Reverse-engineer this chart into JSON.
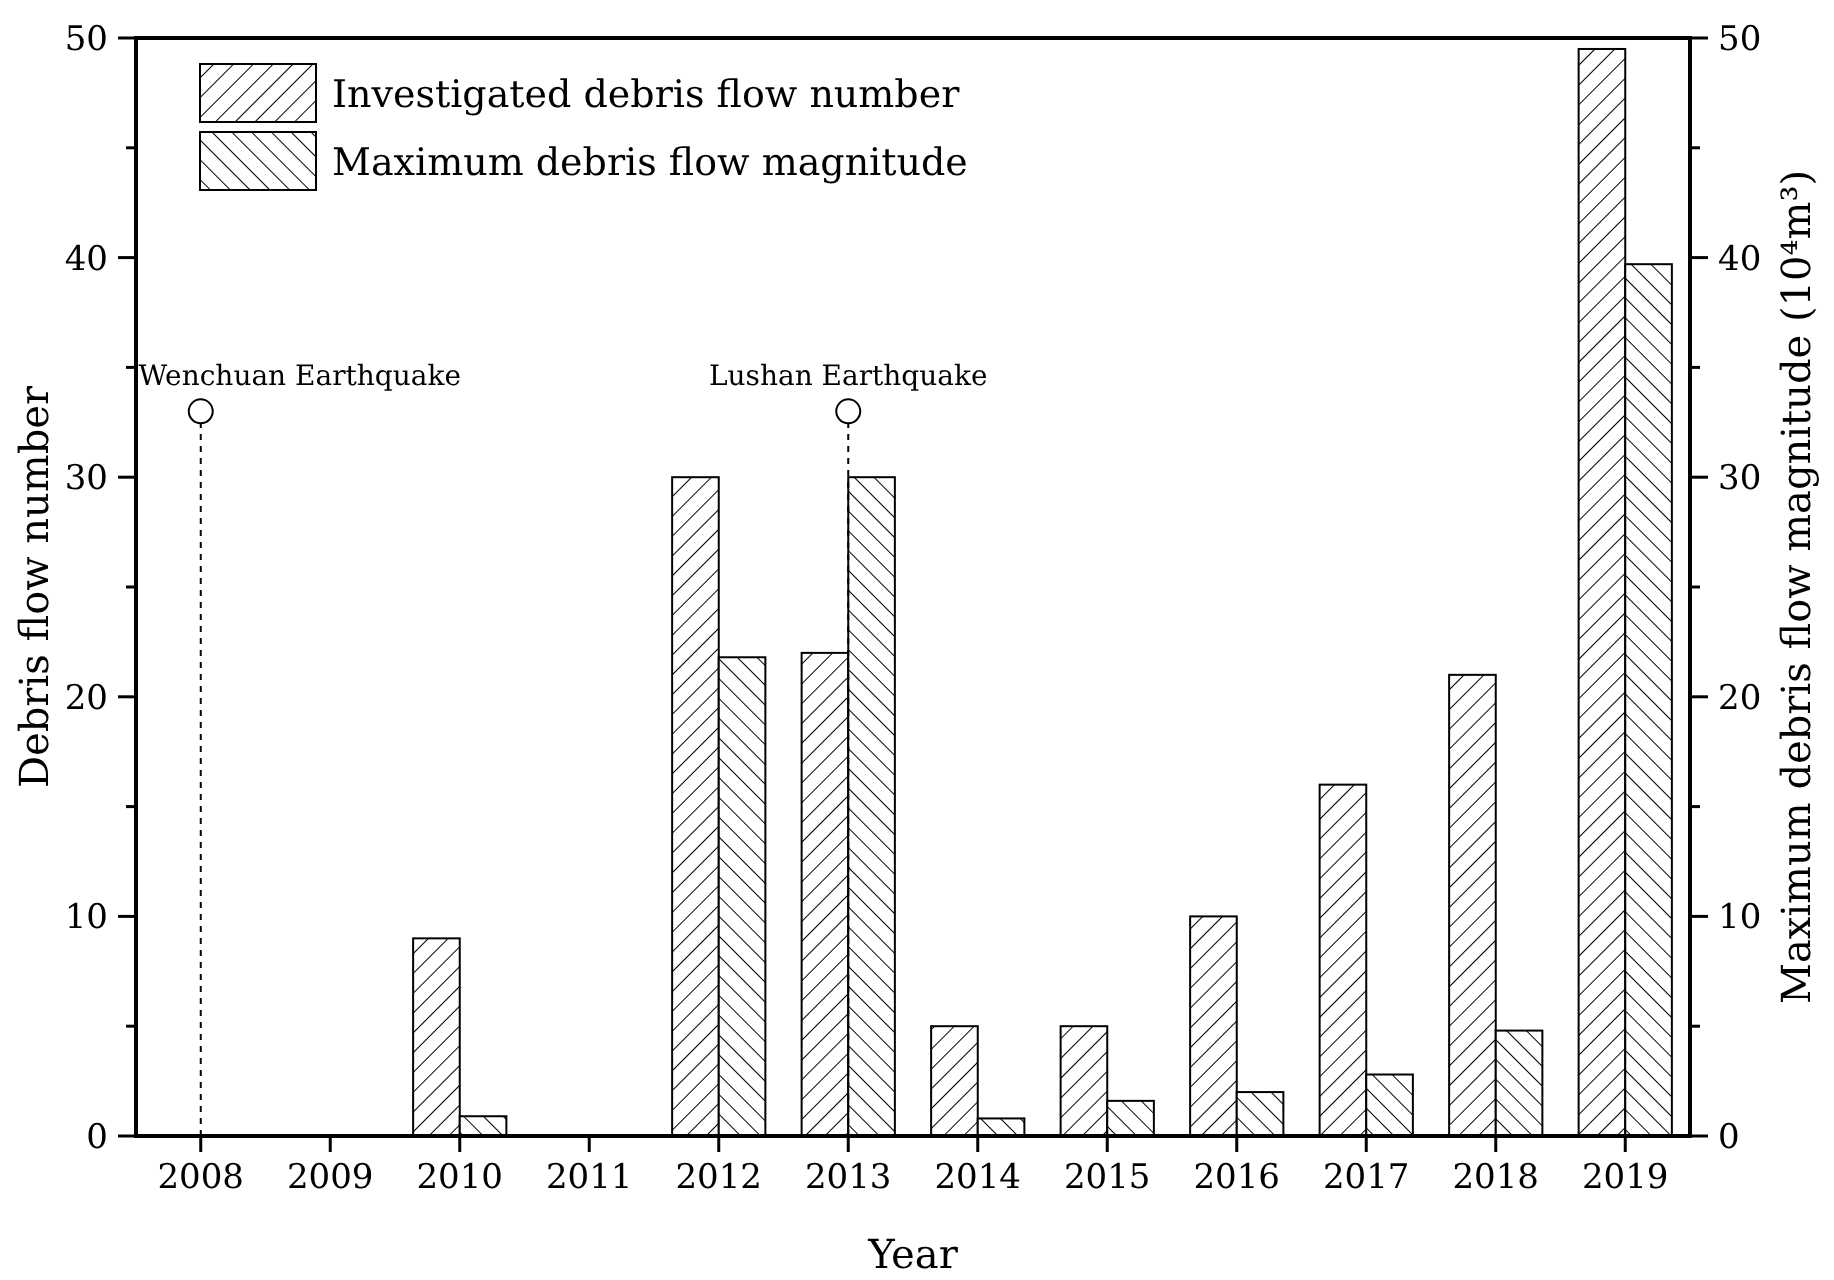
{
  "chart_data": {
    "type": "bar",
    "xlabel": "Year",
    "ylabel": "Debris flow number",
    "y2label": "Maximum debris flow magnitude (10⁴m³)",
    "categories": [
      "2008",
      "2009",
      "2010",
      "2011",
      "2012",
      "2013",
      "2014",
      "2015",
      "2016",
      "2017",
      "2018",
      "2019"
    ],
    "series": [
      {
        "name": "Investigated debris flow number",
        "color": "#000000",
        "values": [
          0,
          0,
          9,
          0,
          30,
          22,
          5,
          5,
          10,
          16,
          21,
          49.5
        ]
      },
      {
        "name": "Maximum debris flow magnitude",
        "color": "#000000",
        "axis": "y2",
        "values": [
          0,
          0,
          0.9,
          0,
          21.8,
          30,
          0.8,
          1.6,
          2,
          2.8,
          4.8,
          39.7
        ]
      }
    ],
    "ylim": [
      0,
      50
    ],
    "yticks": [
      0,
      {
        "value": 5,
        "label": null
      },
      10,
      {
        "value": 15,
        "label": null
      },
      20,
      {
        "value": 25,
        "label": null
      },
      30,
      {
        "value": 35,
        "label": null
      },
      40,
      {
        "value": 45,
        "label": null
      },
      50
    ],
    "y2lim": [
      0,
      50
    ],
    "y2ticks": [
      0,
      {
        "value": 5,
        "label": null
      },
      10,
      {
        "value": 15,
        "label": null
      },
      20,
      {
        "value": 25,
        "label": null
      },
      30,
      {
        "value": 35,
        "label": null
      },
      40,
      {
        "value": 45,
        "label": null
      },
      50
    ],
    "ref_lines": [
      {
        "axis": "x",
        "value": "2008",
        "label": "Wenchuan Earthquake",
        "line_style": "dashed"
      },
      {
        "axis": "x",
        "value": "2013",
        "label": "Lushan Earthquake",
        "line_style": "dashed"
      }
    ],
    "legend": "top left",
    "grid": false
  }
}
